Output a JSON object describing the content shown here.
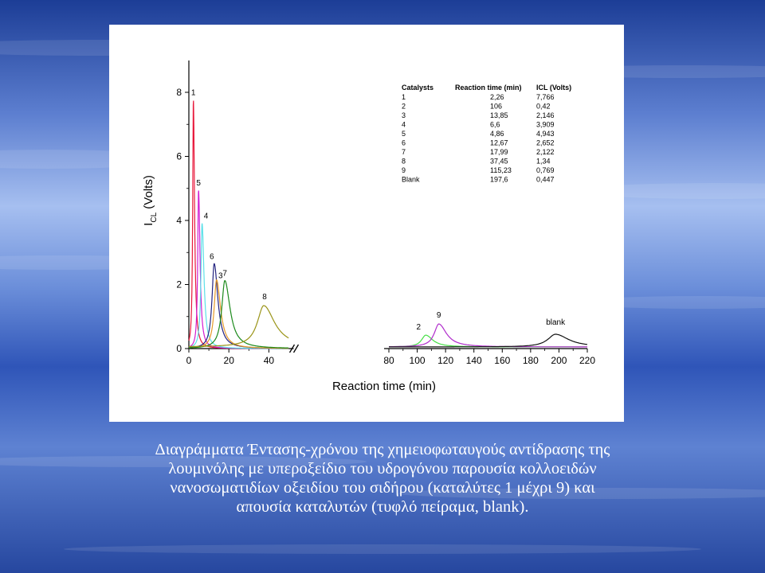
{
  "slide": {
    "caption_lines": [
      "Διαγράμματα Έντασης-χρόνου της χημειοφωταυγούς αντίδρασης της",
      "λουμινόλης με υπεροξείδιο του υδρογόνου παρουσία κολλοειδών",
      "νανοσωματιδίων οξειδίου του σιδήρου (καταλύτες 1 μέχρι 9) και",
      "απουσία καταλυτών (τυφλό πείραμα, blank)."
    ]
  },
  "chart_data": {
    "type": "line",
    "xlabel": "Reaction time (min)",
    "ylabel_main": "I",
    "ylabel_sub": "CL",
    "ylabel_rest": " (Volts)",
    "x_axis_break": true,
    "xlim_left": [
      0,
      50
    ],
    "xlim_right": [
      80,
      220
    ],
    "ylim": [
      0,
      8
    ],
    "x_ticks_left": [
      0,
      20,
      40
    ],
    "x_ticks_right": [
      80,
      100,
      120,
      140,
      160,
      180,
      200,
      220
    ],
    "y_ticks": [
      0,
      2,
      4,
      6,
      8
    ],
    "grid": false,
    "series": [
      {
        "name": "1",
        "label": "1",
        "color": "#e8193c",
        "peak_time": 2.26,
        "peak_icl": 7.766,
        "baseline": 0.0
      },
      {
        "name": "5",
        "label": "5",
        "color": "#d21ed2",
        "peak_time": 4.86,
        "peak_icl": 4.943,
        "baseline": 0.0
      },
      {
        "name": "4",
        "label": "4",
        "color": "#5ce0e8",
        "peak_time": 6.6,
        "peak_icl": 3.909,
        "baseline": 0.0
      },
      {
        "name": "6",
        "label": "6",
        "color": "#23237f",
        "peak_time": 12.67,
        "peak_icl": 2.652,
        "baseline": 0.0
      },
      {
        "name": "3",
        "label": "3",
        "color": "#e59a2a",
        "peak_time": 13.85,
        "peak_icl": 2.146,
        "baseline": 0.0
      },
      {
        "name": "7",
        "label": "7",
        "color": "#1c8a1c",
        "peak_time": 17.99,
        "peak_icl": 2.122,
        "baseline": 0.0
      },
      {
        "name": "8",
        "label": "8",
        "color": "#9a9418",
        "peak_time": 37.45,
        "peak_icl": 1.34,
        "baseline": 0.05
      },
      {
        "name": "2",
        "label": "2",
        "color": "#45e045",
        "peak_time": 106,
        "peak_icl": 0.42,
        "baseline": 0.05
      },
      {
        "name": "9",
        "label": "9",
        "color": "#b02ccc",
        "peak_time": 115.23,
        "peak_icl": 0.769,
        "baseline": 0.05
      },
      {
        "name": "blank",
        "label": "blank",
        "color": "#111111",
        "peak_time": 197.6,
        "peak_icl": 0.447,
        "baseline": 0.05
      }
    ],
    "table": {
      "headers": [
        "Catalysts",
        "Reaction time (min)",
        "ICL (Volts)"
      ],
      "rows": [
        [
          "1",
          "2,26",
          "7,766"
        ],
        [
          "2",
          "106",
          "0,42"
        ],
        [
          "3",
          "13,85",
          "2,146"
        ],
        [
          "4",
          "6,6",
          "3,909"
        ],
        [
          "5",
          "4,86",
          "4,943"
        ],
        [
          "6",
          "12,67",
          "2,652"
        ],
        [
          "7",
          "17,99",
          "2,122"
        ],
        [
          "8",
          "37,45",
          "1,34"
        ],
        [
          "9",
          "115,23",
          "0,769"
        ],
        [
          "Blank",
          "197,6",
          "0,447"
        ]
      ]
    }
  }
}
